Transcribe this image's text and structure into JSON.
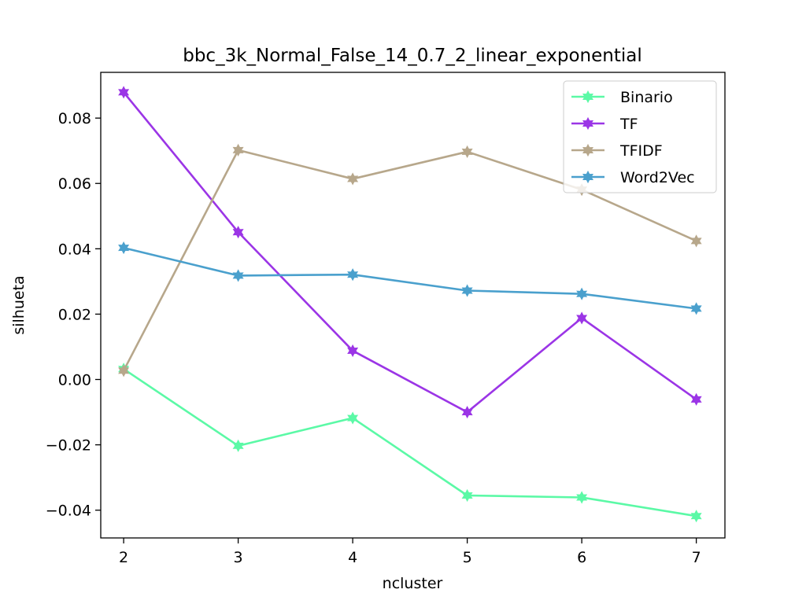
{
  "chart_data": {
    "type": "line",
    "title": "bbc_3k_Normal_False_14_0.7_2_linear_exponential",
    "xlabel": "ncluster",
    "ylabel": "silhueta",
    "x": [
      2,
      3,
      4,
      5,
      6,
      7
    ],
    "xlim": [
      1.8,
      7.25
    ],
    "ylim": [
      -0.0485,
      0.094
    ],
    "xticks": [
      "2",
      "3",
      "4",
      "5",
      "6",
      "7"
    ],
    "yticks": [
      {
        "value": -0.04,
        "label": "−0.04"
      },
      {
        "value": -0.02,
        "label": "−0.02"
      },
      {
        "value": 0.0,
        "label": "0.00"
      },
      {
        "value": 0.02,
        "label": "0.02"
      },
      {
        "value": 0.04,
        "label": "0.04"
      },
      {
        "value": 0.06,
        "label": "0.06"
      },
      {
        "value": 0.08,
        "label": "0.08"
      }
    ],
    "grid": false,
    "legend_position": "top-right",
    "series": [
      {
        "name": "Binario",
        "color": "#5bf9a6",
        "values": [
          0.0032,
          -0.0203,
          -0.0118,
          -0.0355,
          -0.0361,
          -0.0418
        ]
      },
      {
        "name": "TF",
        "color": "#9b35e6",
        "values": [
          0.0879,
          0.0451,
          0.0088,
          -0.01,
          0.0188,
          -0.0061
        ]
      },
      {
        "name": "TFIDF",
        "color": "#b7a78b",
        "values": [
          0.0027,
          0.0702,
          0.0614,
          0.0697,
          0.0581,
          0.0424
        ]
      },
      {
        "name": "Word2Vec",
        "color": "#4aa0cd",
        "values": [
          0.0403,
          0.0318,
          0.0321,
          0.0272,
          0.0262,
          0.0217
        ]
      }
    ]
  }
}
